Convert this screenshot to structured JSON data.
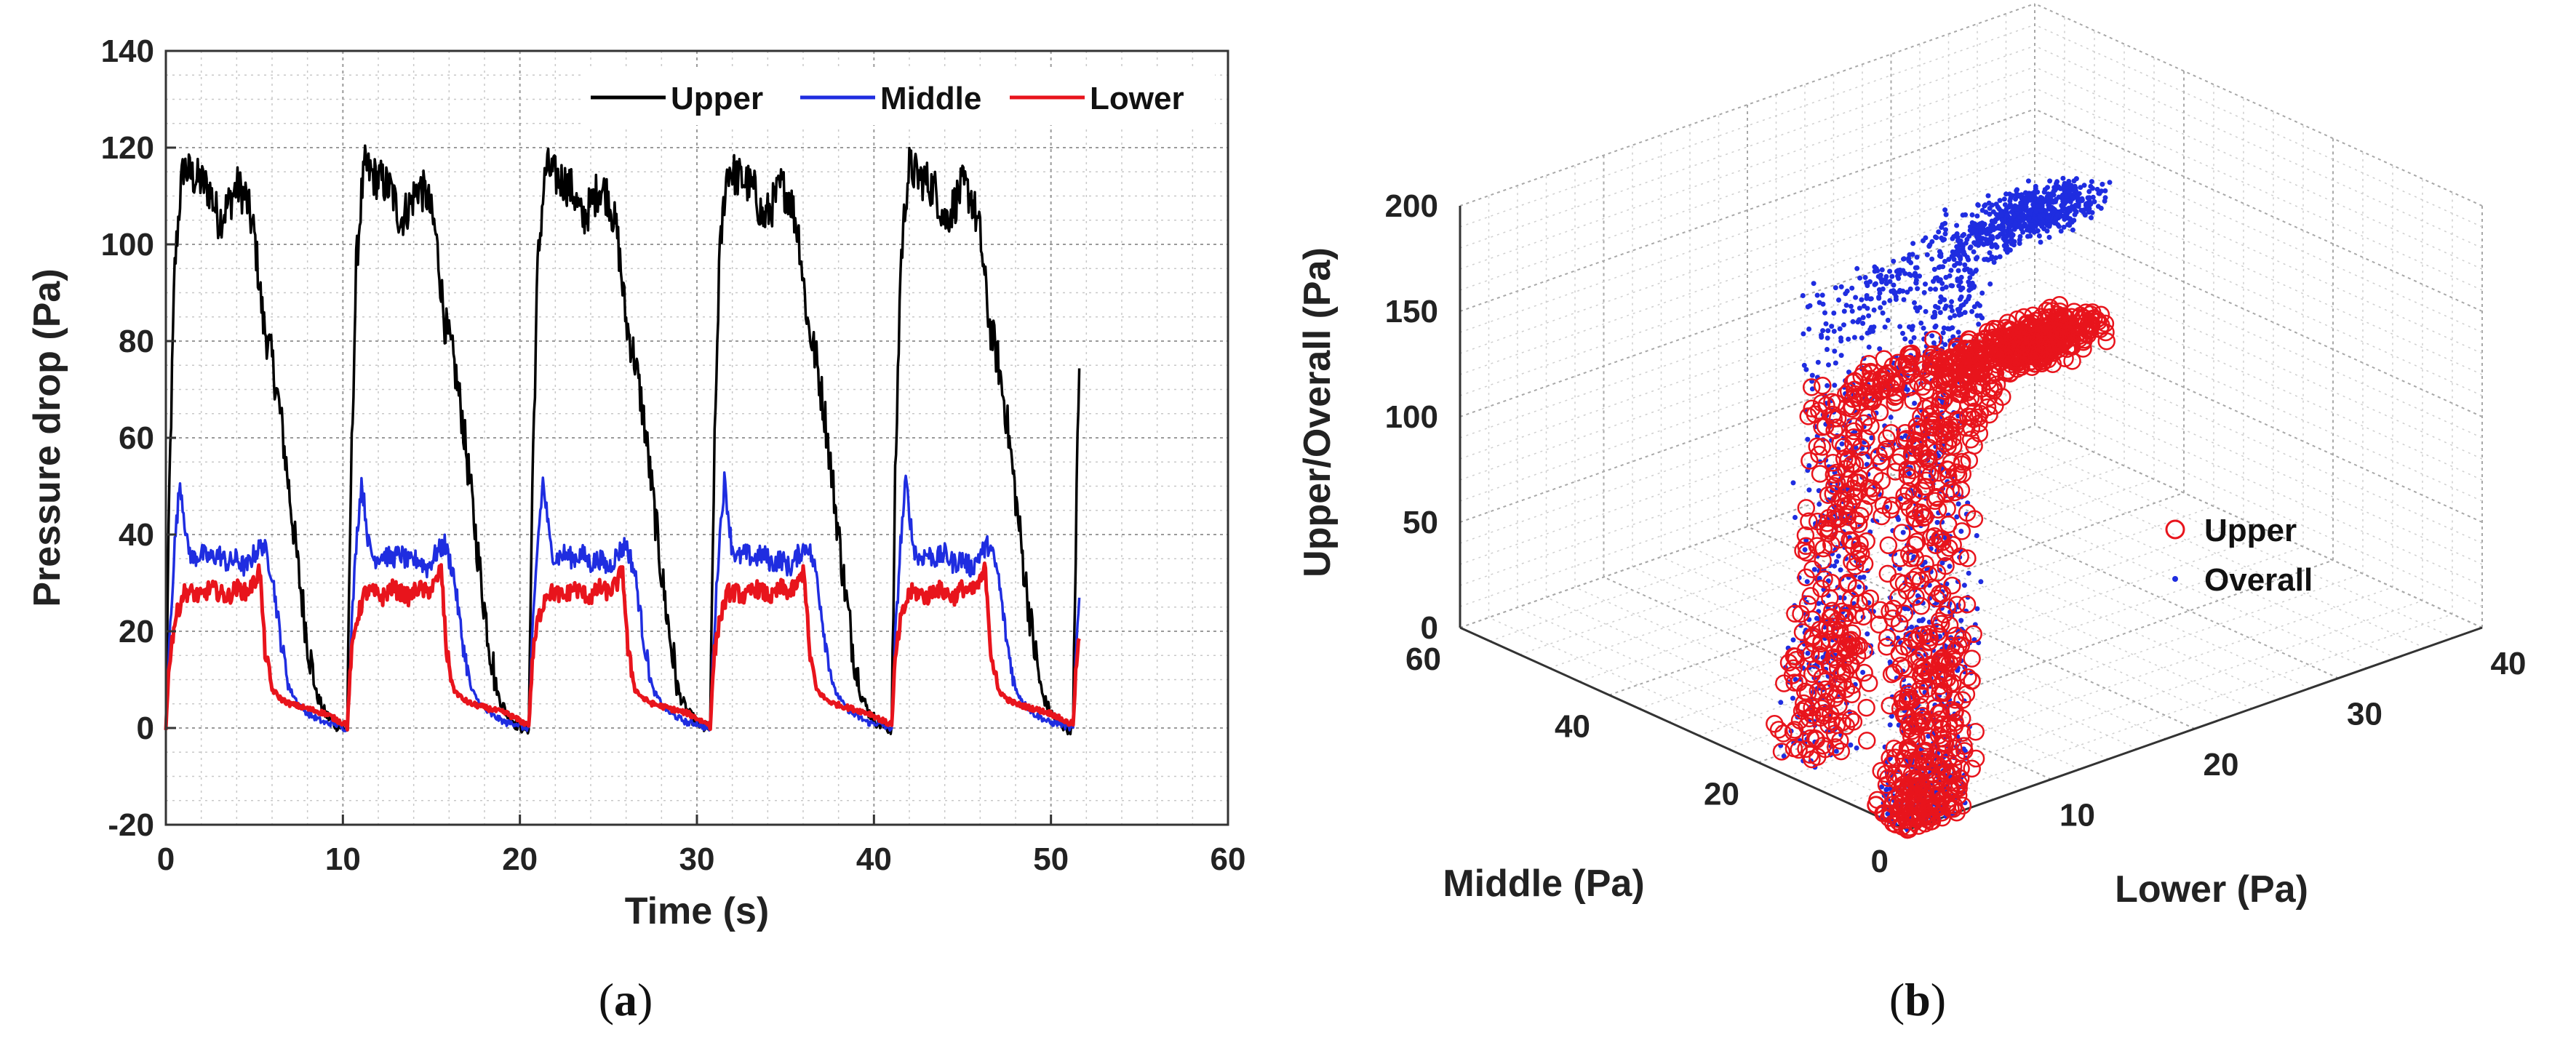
{
  "chart_data": [
    {
      "type": "line",
      "panel_label": "(a)",
      "xlabel": "Time (s)",
      "ylabel": "Pressure drop (Pa)",
      "xlim": [
        0,
        60
      ],
      "ylim": [
        -20,
        140
      ],
      "xticks": [
        0,
        10,
        20,
        30,
        40,
        50,
        60
      ],
      "yticks": [
        -20,
        0,
        20,
        40,
        60,
        80,
        100,
        120,
        140
      ],
      "grid": true,
      "legend_position": "top-right",
      "cycle_period_s": 10.25,
      "cycle_count": 5,
      "series": [
        {
          "name": "Upper",
          "color": "#000000",
          "cycle_profile": {
            "t": [
              0,
              0.2,
              0.5,
              0.8,
              1.0,
              1.5,
              2.0,
              2.5,
              3.0,
              3.5,
              4.0,
              4.5,
              5.0,
              5.5,
              6.0,
              6.5,
              7.0,
              7.5,
              8.0,
              8.5,
              9.0,
              9.5,
              10.0
            ],
            "v": [
              0,
              50,
              95,
              110,
              116,
              114,
              113,
              111,
              105,
              108,
              112,
              110,
              102,
              84,
              76,
              64,
              48,
              32,
              18,
              7,
              3,
              1,
              0
            ]
          }
        },
        {
          "name": "Middle",
          "color": "#1f2de0",
          "cycle_profile": {
            "t": [
              0,
              0.2,
              0.5,
              0.8,
              1.0,
              1.2,
              1.5,
              2.0,
              2.5,
              3.0,
              3.5,
              4.0,
              4.5,
              5.0,
              5.5,
              6.0,
              6.5,
              7.0,
              7.5,
              8.0,
              8.5,
              9.0,
              9.5,
              10.0
            ],
            "v": [
              0,
              18,
              38,
              51,
              45,
              38,
              35,
              36,
              35,
              36,
              34,
              35,
              33,
              36,
              38,
              32,
              18,
              8,
              5,
              3,
              2,
              1,
              1,
              0
            ]
          }
        },
        {
          "name": "Lower",
          "color": "#e8141c",
          "cycle_profile": {
            "t": [
              0,
              0.2,
              0.5,
              1.0,
              1.5,
              2.0,
              2.5,
              3.0,
              3.5,
              4.0,
              4.5,
              5.0,
              5.3,
              5.6,
              6.0,
              6.5,
              7.0,
              8.0,
              9.0,
              10.0
            ],
            "v": [
              0,
              14,
              22,
              28,
              28,
              27,
              29,
              28,
              27,
              29,
              28,
              30,
              33,
              16,
              8,
              6,
              5,
              4,
              3,
              1
            ]
          }
        }
      ]
    },
    {
      "type": "scatter3d",
      "panel_label": "(b)",
      "xlabel": "Lower (Pa)",
      "ylabel": "Middle (Pa)",
      "zlabel": "Upper/Overall (Pa)",
      "xlim": [
        0,
        40
      ],
      "ylim": [
        0,
        60
      ],
      "zlim": [
        0,
        200
      ],
      "xticks": [
        10,
        20,
        30,
        40
      ],
      "yticks": [
        0,
        20,
        40,
        60
      ],
      "zticks": [
        0,
        50,
        100,
        150,
        200
      ],
      "grid": true,
      "legend_position": "right",
      "series": [
        {
          "name": "Upper",
          "marker": "circle-open",
          "color": "#e8141c",
          "trajectory_lower": [
            3,
            12,
            22,
            27,
            29,
            28,
            24,
            16,
            8,
            4,
            1
          ],
          "trajectory_middle": [
            18,
            32,
            50,
            38,
            35,
            34,
            37,
            28,
            12,
            5,
            1
          ],
          "trajectory_value": [
            0,
            30,
            75,
            105,
            112,
            110,
            108,
            90,
            45,
            10,
            0
          ]
        },
        {
          "name": "Overall",
          "marker": "point",
          "color": "#1f2de0",
          "trajectory_lower": [
            3,
            12,
            22,
            27,
            29,
            28,
            24,
            16,
            8,
            4,
            1
          ],
          "trajectory_middle": [
            18,
            32,
            50,
            38,
            35,
            34,
            37,
            28,
            12,
            5,
            1
          ],
          "trajectory_value": [
            0,
            60,
            120,
            160,
            175,
            172,
            170,
            140,
            70,
            15,
            0
          ]
        }
      ]
    }
  ]
}
